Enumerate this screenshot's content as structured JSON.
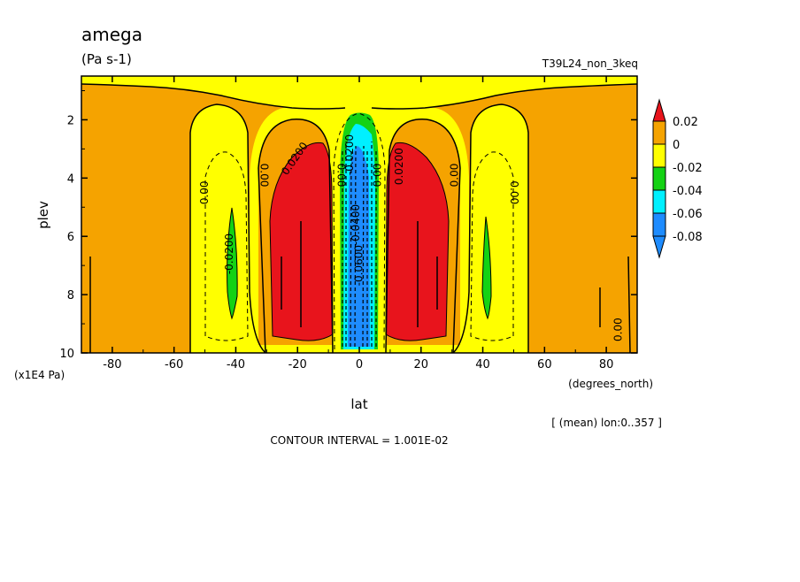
{
  "chart_data": {
    "type": "contour",
    "title": "amega",
    "units": "(Pa s-1)",
    "run_label": "T39L24_non_3keq",
    "xlabel": "lat",
    "ylabel": "plev",
    "x_unit_label": "(degrees_north)",
    "y_unit_label": "(x1E4 Pa)",
    "averaging_note": "[ (mean) lon:0..357 ]",
    "contour_interval_text": "CONTOUR INTERVAL = 1.001E-02",
    "xlim": [
      -90,
      90
    ],
    "ylim": [
      10,
      0.5
    ],
    "x_ticks": [
      {
        "value": -80,
        "label": "-80"
      },
      {
        "value": -60,
        "label": "-60"
      },
      {
        "value": -40,
        "label": "-40"
      },
      {
        "value": -20,
        "label": "-20"
      },
      {
        "value": 0,
        "label": "0"
      },
      {
        "value": 20,
        "label": "20"
      },
      {
        "value": 40,
        "label": "40"
      },
      {
        "value": 60,
        "label": "60"
      },
      {
        "value": 80,
        "label": "80"
      }
    ],
    "y_ticks": [
      {
        "value": 2,
        "label": "2"
      },
      {
        "value": 4,
        "label": "4"
      },
      {
        "value": 6,
        "label": "6"
      },
      {
        "value": 8,
        "label": "8"
      },
      {
        "value": 10,
        "label": "10"
      }
    ],
    "colorbar": {
      "levels": [
        {
          "label": "0.02",
          "color": "#e8141c"
        },
        {
          "label": "0",
          "color": "#f5a300"
        },
        {
          "label": "-0.02",
          "color": "#ffff00"
        },
        {
          "label": "-0.04",
          "color": "#14d214"
        },
        {
          "label": "-0.06",
          "color": "#00f0ff"
        },
        {
          "label": "-0.08",
          "color": "#1e8cff"
        }
      ],
      "bands": [
        {
          "color": "#f5a300"
        },
        {
          "color": "#ffff00"
        },
        {
          "color": "#14d214"
        },
        {
          "color": "#00f0ff"
        },
        {
          "color": "#1e8cff"
        }
      ],
      "top_arrow_color": "#e8141c",
      "bottom_arrow_color": "#1e8cff"
    },
    "contour_labels": [
      {
        "text": "0.00",
        "lat": -49,
        "plev": 4.5,
        "rotate": -90
      },
      {
        "text": "0.00",
        "lat": -32,
        "plev": 3.9,
        "rotate": 90
      },
      {
        "text": "-0.0200",
        "lat": -41,
        "plev": 6.6,
        "rotate": -90
      },
      {
        "text": "0.0200",
        "lat": -20,
        "plev": 3.4,
        "rotate": -55
      },
      {
        "text": "0.00",
        "lat": -7,
        "plev": 3.9,
        "rotate": 90
      },
      {
        "text": "-0.0200",
        "lat": -2,
        "plev": 3.2,
        "rotate": -90
      },
      {
        "text": "-0.0400",
        "lat": 0,
        "plev": 5.6,
        "rotate": -90
      },
      {
        "text": "-0.0600",
        "lat": 1,
        "plev": 7.0,
        "rotate": -90
      },
      {
        "text": "0.00",
        "lat": 7,
        "plev": 3.9,
        "rotate": -90
      },
      {
        "text": "0.0200",
        "lat": 14,
        "plev": 3.6,
        "rotate": -90
      },
      {
        "text": "0.00",
        "lat": 32,
        "plev": 3.9,
        "rotate": -90
      },
      {
        "text": "0.00",
        "lat": 49,
        "plev": 4.5,
        "rotate": 90
      },
      {
        "text": "0.00",
        "lat": 85,
        "plev": 9.2,
        "rotate": -90
      }
    ],
    "regions": [
      {
        "name": "positive-max",
        "level": "0.02",
        "color": "#e8141c",
        "lat_range": [
          -27,
          -9
        ],
        "plev_range": [
          2.4,
          9.5
        ]
      },
      {
        "name": "positive-max",
        "level": "0.02",
        "color": "#e8141c",
        "lat_range": [
          7,
          25
        ],
        "plev_range": [
          2.4,
          9.5
        ]
      },
      {
        "name": "negative-min",
        "level": "-0.08",
        "color": "#1e8cff",
        "lat_range": [
          -3,
          3
        ],
        "plev_range": [
          2.9,
          9.7
        ]
      },
      {
        "name": "negative-min",
        "level": "-0.04",
        "color": "#14d214",
        "lat_range": [
          -42,
          -39
        ],
        "plev_range": [
          4.8,
          8.8
        ]
      },
      {
        "name": "negative-min",
        "level": "-0.04",
        "color": "#14d214",
        "lat_range": [
          39,
          42
        ],
        "plev_range": [
          5.2,
          8.7
        ]
      }
    ]
  }
}
